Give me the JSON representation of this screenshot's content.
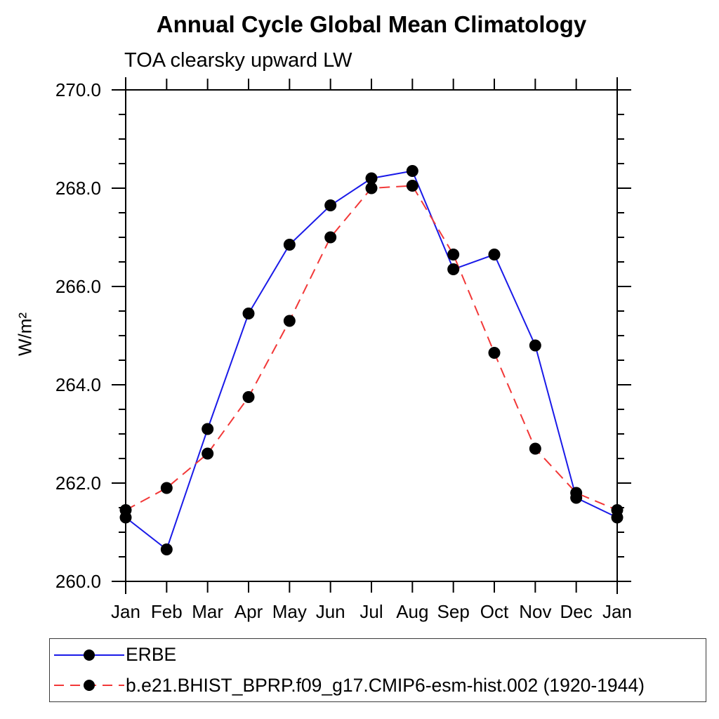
{
  "header": {
    "title": "Annual Cycle Global Mean Climatology",
    "subtitle": "TOA clearsky upward LW"
  },
  "colors": {
    "erbe_line": "#1a1ae8",
    "model_line": "#f23838",
    "marker": "#000000",
    "axis": "#000000",
    "legend_border": "#3a3a3a"
  },
  "chart_data": {
    "type": "line",
    "title": "Annual Cycle Global Mean Climatology",
    "subtitle": "TOA clearsky upward LW",
    "xlabel": "",
    "ylabel": "W/m²",
    "x_tick_labels": [
      "Jan",
      "Feb",
      "Mar",
      "Apr",
      "May",
      "Jun",
      "Jul",
      "Aug",
      "Sep",
      "Oct",
      "Nov",
      "Dec",
      "Jan"
    ],
    "y_tick_labels": [
      "260.0",
      "262.0",
      "264.0",
      "266.0",
      "268.0",
      "270.0"
    ],
    "ylim": [
      260.0,
      270.0
    ],
    "y_major_step": 2.0,
    "y_minor_step": 0.5,
    "grid": false,
    "tick_style": "outward-all-sides",
    "legend_position": "bottom-left-boxed",
    "series": [
      {
        "name": "ERBE",
        "color": "#1a1ae8",
        "line_style": "solid",
        "marker": "circle",
        "marker_color": "#000000",
        "values": [
          261.3,
          260.65,
          263.1,
          265.45,
          266.85,
          267.65,
          268.2,
          268.35,
          266.35,
          266.65,
          264.8,
          261.7,
          261.3
        ]
      },
      {
        "name": "b.e21.BHIST_BPRP.f09_g17.CMIP6-esm-hist.002 (1920-1944)",
        "color": "#f23838",
        "line_style": "dashed",
        "marker": "circle",
        "marker_color": "#000000",
        "values": [
          261.45,
          261.9,
          262.6,
          263.75,
          265.3,
          267.0,
          268.0,
          268.05,
          266.65,
          264.65,
          262.7,
          261.8,
          261.45
        ]
      }
    ]
  }
}
